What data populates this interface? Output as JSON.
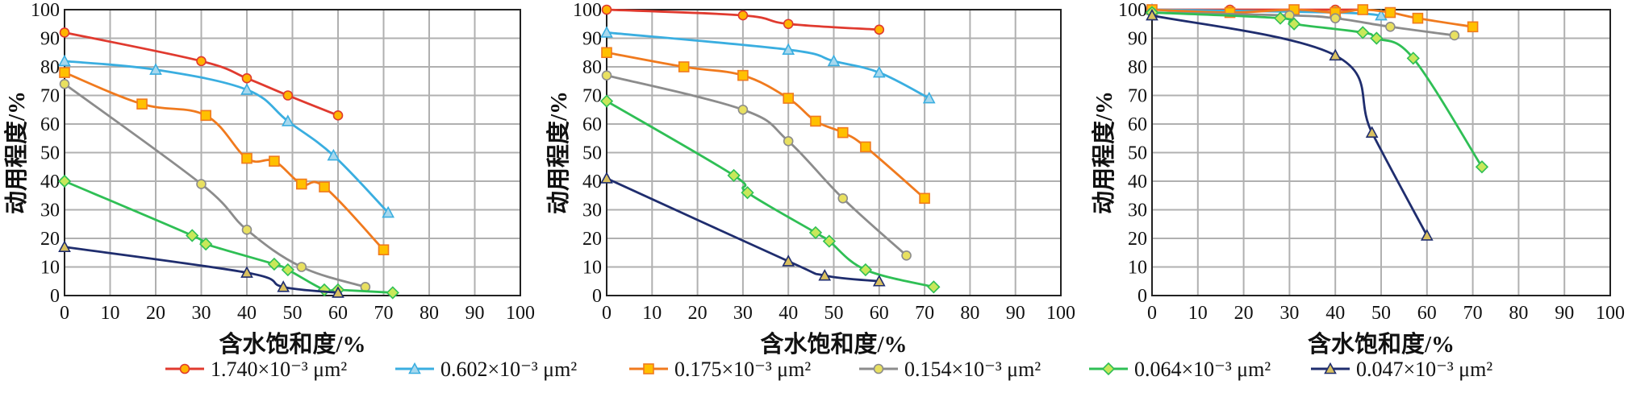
{
  "chart_data": [
    {
      "type": "line",
      "xlabel": "含水饱和度/%",
      "ylabel": "动用程度/%",
      "xlim": [
        0,
        100
      ],
      "ylim": [
        0,
        100
      ],
      "x_ticks": [
        0,
        10,
        20,
        30,
        40,
        50,
        60,
        70,
        80,
        90,
        100
      ],
      "y_ticks": [
        0,
        10,
        20,
        30,
        40,
        50,
        60,
        70,
        80,
        90,
        100
      ],
      "grid": true,
      "series": [
        {
          "name": "1.740×10⁻³ μm²",
          "x": [
            0,
            30,
            40,
            49,
            60
          ],
          "y": [
            92,
            82,
            76,
            70,
            63
          ]
        },
        {
          "name": "0.602×10⁻³ μm²",
          "x": [
            0,
            20,
            40,
            49,
            59,
            71
          ],
          "y": [
            82,
            79,
            72,
            61,
            49,
            29
          ]
        },
        {
          "name": "0.175×10⁻³ μm²",
          "x": [
            0,
            17,
            31,
            40,
            46,
            52,
            57,
            70
          ],
          "y": [
            78,
            67,
            63,
            48,
            47,
            39,
            38,
            16
          ]
        },
        {
          "name": "0.154×10⁻³ μm²",
          "x": [
            0,
            30,
            40,
            52,
            66
          ],
          "y": [
            74,
            39,
            23,
            10,
            3
          ]
        },
        {
          "name": "0.064×10⁻³ μm²",
          "x": [
            0,
            28,
            31,
            46,
            49,
            57,
            60,
            72
          ],
          "y": [
            40,
            21,
            18,
            11,
            9,
            2,
            2,
            1
          ]
        },
        {
          "name": "0.047×10⁻³ μm²",
          "x": [
            0,
            40,
            48,
            60
          ],
          "y": [
            17,
            8,
            3,
            1
          ]
        }
      ]
    },
    {
      "type": "line",
      "xlabel": "含水饱和度/%",
      "ylabel": "动用程度/%",
      "xlim": [
        0,
        100
      ],
      "ylim": [
        0,
        100
      ],
      "x_ticks": [
        0,
        10,
        20,
        30,
        40,
        50,
        60,
        70,
        80,
        90,
        100
      ],
      "y_ticks": [
        0,
        10,
        20,
        30,
        40,
        50,
        60,
        70,
        80,
        90,
        100
      ],
      "grid": true,
      "series": [
        {
          "name": "1.740×10⁻³ μm²",
          "x": [
            0,
            30,
            40,
            60
          ],
          "y": [
            100,
            98,
            95,
            93
          ]
        },
        {
          "name": "0.602×10⁻³ μm²",
          "x": [
            0,
            40,
            50,
            60,
            71
          ],
          "y": [
            92,
            86,
            82,
            78,
            69
          ]
        },
        {
          "name": "0.175×10⁻³ μm²",
          "x": [
            0,
            17,
            30,
            40,
            46,
            52,
            57,
            70
          ],
          "y": [
            85,
            80,
            77,
            69,
            61,
            57,
            52,
            34
          ]
        },
        {
          "name": "0.154×10⁻³ μm²",
          "x": [
            0,
            30,
            40,
            52,
            66
          ],
          "y": [
            77,
            65,
            54,
            34,
            14
          ]
        },
        {
          "name": "0.064×10⁻³ μm²",
          "x": [
            0,
            28,
            31,
            46,
            49,
            57,
            72
          ],
          "y": [
            68,
            42,
            36,
            22,
            19,
            9,
            3
          ]
        },
        {
          "name": "0.047×10⁻³ μm²",
          "x": [
            0,
            40,
            48,
            60
          ],
          "y": [
            41,
            12,
            7,
            5
          ]
        }
      ]
    },
    {
      "type": "line",
      "xlabel": "含水饱和度/%",
      "ylabel": "动用程度/%",
      "xlim": [
        0,
        100
      ],
      "ylim": [
        0,
        100
      ],
      "x_ticks": [
        0,
        10,
        20,
        30,
        40,
        50,
        60,
        70,
        80,
        90,
        100
      ],
      "y_ticks": [
        0,
        10,
        20,
        30,
        40,
        50,
        60,
        70,
        80,
        90,
        100
      ],
      "grid": true,
      "series": [
        {
          "name": "1.740×10⁻³ μm²",
          "x": [
            0,
            17,
            31,
            40,
            46
          ],
          "y": [
            100,
            100,
            100,
            100,
            100
          ]
        },
        {
          "name": "0.602×10⁻³ μm²",
          "x": [
            0,
            40,
            50
          ],
          "y": [
            100,
            99,
            98
          ]
        },
        {
          "name": "0.175×10⁻³ μm²",
          "x": [
            0,
            17,
            31,
            40,
            46,
            52,
            58,
            70
          ],
          "y": [
            100,
            99,
            100,
            99,
            100,
            99,
            97,
            94
          ]
        },
        {
          "name": "0.154×10⁻³ μm²",
          "x": [
            0,
            30,
            40,
            52,
            66
          ],
          "y": [
            99,
            98,
            97,
            94,
            91
          ]
        },
        {
          "name": "0.064×10⁻³ μm²",
          "x": [
            0,
            28,
            31,
            46,
            49,
            57,
            72
          ],
          "y": [
            99,
            97,
            95,
            92,
            90,
            83,
            45
          ]
        },
        {
          "name": "0.047×10⁻³ μm²",
          "x": [
            0,
            40,
            48,
            60
          ],
          "y": [
            98,
            84,
            57,
            21
          ]
        }
      ]
    }
  ],
  "legend": {
    "placement": "bottom",
    "items": [
      {
        "label": "1.740×10⁻³ μm²",
        "color": "#e03a2f",
        "marker": "circle",
        "fill": "#ffb400"
      },
      {
        "label": "0.602×10⁻³ μm²",
        "color": "#3aaee0",
        "marker": "triangle",
        "fill": "#a7d8ee"
      },
      {
        "label": "0.175×10⁻³ μm²",
        "color": "#f07a1e",
        "marker": "square",
        "fill": "#ffc000"
      },
      {
        "label": "0.154×10⁻³ μm²",
        "color": "#8c8c8c",
        "marker": "circle",
        "fill": "#e8e060"
      },
      {
        "label": "0.064×10⁻³ μm²",
        "color": "#2fbf55",
        "marker": "diamond",
        "fill": "#c8e85a"
      },
      {
        "label": "0.047×10⁻³ μm²",
        "color": "#1f2d6e",
        "marker": "triangle",
        "fill": "#d9c060"
      }
    ]
  }
}
